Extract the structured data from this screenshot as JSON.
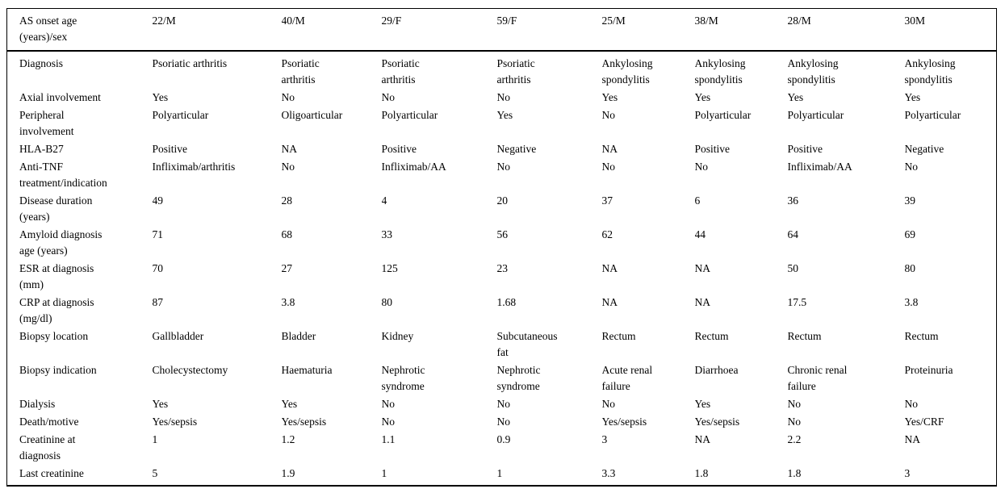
{
  "colors": {
    "text": "#000000",
    "background": "#ffffff",
    "rule": "#000000"
  },
  "table": {
    "header": {
      "label": "AS onset age\n(years)/sex",
      "values": [
        "22/M",
        "40/M",
        "29/F",
        "59/F",
        "25/M",
        "38/M",
        "28/M",
        "30M"
      ]
    },
    "rows": [
      {
        "label": "Diagnosis",
        "values": [
          "Psoriatic arthritis",
          "Psoriatic\narthritis",
          "Psoriatic\narthritis",
          "Psoriatic\narthritis",
          "Ankylosing\nspondylitis",
          "Ankylosing\nspondylitis",
          "Ankylosing\nspondylitis",
          "Ankylosing\nspondylitis"
        ]
      },
      {
        "label": "Axial involvement",
        "values": [
          "Yes",
          "No",
          "No",
          "No",
          "Yes",
          "Yes",
          "Yes",
          "Yes"
        ]
      },
      {
        "label": "Peripheral\ninvolvement",
        "values": [
          "Polyarticular",
          "Oligoarticular",
          "Polyarticular",
          "Yes",
          "No",
          "Polyarticular",
          "Polyarticular",
          "Polyarticular"
        ]
      },
      {
        "label": "HLA-B27",
        "values": [
          "Positive",
          "NA",
          "Positive",
          "Negative",
          "NA",
          "Positive",
          "Positive",
          "Negative"
        ]
      },
      {
        "label": "Anti-TNF\ntreatment/indication",
        "values": [
          "Infliximab/arthritis",
          "No",
          "Infliximab/AA",
          "No",
          "No",
          "No",
          "Infliximab/AA",
          "No"
        ]
      },
      {
        "label": "Disease duration\n(years)",
        "values": [
          "49",
          "28",
          "4",
          "20",
          "37",
          "6",
          "36",
          "39"
        ]
      },
      {
        "label": "Amyloid diagnosis\nage (years)",
        "values": [
          "71",
          "68",
          "33",
          "56",
          "62",
          "44",
          "64",
          "69"
        ]
      },
      {
        "label": "ESR at diagnosis\n(mm)",
        "values": [
          "70",
          "27",
          "125",
          "23",
          "NA",
          "NA",
          "50",
          "80"
        ]
      },
      {
        "label": "CRP at diagnosis\n(mg/dl)",
        "values": [
          "87",
          "3.8",
          "80",
          "1.68",
          "NA",
          "NA",
          "17.5",
          "3.8"
        ]
      },
      {
        "label": "Biopsy location",
        "values": [
          "Gallbladder",
          "Bladder",
          "Kidney",
          "Subcutaneous\nfat",
          "Rectum",
          "Rectum",
          "Rectum",
          "Rectum"
        ]
      },
      {
        "label": "Biopsy indication",
        "values": [
          "Cholecystectomy",
          "Haematuria",
          "Nephrotic\nsyndrome",
          "Nephrotic\nsyndrome",
          "Acute renal\nfailure",
          "Diarrhoea",
          "Chronic renal\nfailure",
          "Proteinuria"
        ]
      },
      {
        "label": "Dialysis",
        "values": [
          "Yes",
          "Yes",
          "No",
          "No",
          "No",
          "Yes",
          "No",
          "No"
        ]
      },
      {
        "label": "Death/motive",
        "values": [
          "Yes/sepsis",
          "Yes/sepsis",
          "No",
          "No",
          "Yes/sepsis",
          "Yes/sepsis",
          "No",
          "Yes/CRF"
        ]
      },
      {
        "label": "Creatinine at\ndiagnosis",
        "values": [
          "1",
          "1.2",
          "1.1",
          "0.9",
          "3",
          "NA",
          "2.2",
          "NA"
        ]
      },
      {
        "label": "Last creatinine",
        "values": [
          "5",
          "1.9",
          "1",
          "1",
          "3.3",
          "1.8",
          "1.8",
          "3"
        ]
      }
    ]
  }
}
